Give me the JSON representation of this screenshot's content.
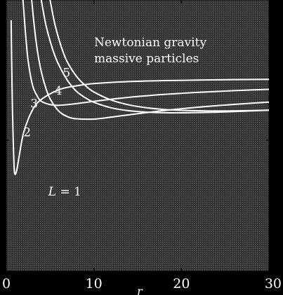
{
  "chart_data": {
    "type": "line",
    "title": "",
    "annotation_lines": [
      "Newtonian gravity",
      "massive particles"
    ],
    "xlabel": "r",
    "ylabel": "",
    "xlim": [
      0,
      30
    ],
    "ylim": [
      -0.5,
      0.2
    ],
    "xticks": [
      0,
      10,
      20,
      30
    ],
    "grid": false,
    "legend": "none",
    "background_color": "#3a3a3a",
    "line_color": "#ffffff",
    "text_color": "#ffffff",
    "series": [
      {
        "label": "L = 1",
        "L": 1,
        "label_x": 4.8,
        "label_y": -0.305,
        "x": [
          0.55,
          0.6,
          0.7,
          0.8,
          0.9,
          1.0,
          1.2,
          1.5,
          2,
          3,
          4,
          6,
          8,
          10,
          14,
          18,
          22,
          26,
          30
        ],
        "y": [
          0.1477,
          0.0556,
          -0.0816,
          -0.1719,
          -0.2346,
          -0.25,
          -0.2384,
          -0.1989,
          -0.1406,
          -0.0833,
          -0.0567,
          -0.0316,
          -0.0215,
          -0.0158,
          -0.0105,
          -0.0081,
          -0.0067,
          -0.0056,
          -0.0048
        ]
      },
      {
        "label": "2",
        "L": 2,
        "label_x": 1.95,
        "label_y": -0.152,
        "x": [
          1.9,
          2.0,
          2.2,
          2.5,
          3,
          3.5,
          4,
          5,
          6,
          8,
          10,
          14,
          18,
          22,
          26,
          30
        ],
        "y": [
          0.2001,
          0.1718,
          0.1115,
          0.0417,
          -0.0204,
          -0.0468,
          -0.0615,
          -0.07,
          -0.0719,
          -0.0675,
          -0.0616,
          -0.0512,
          -0.0438,
          -0.0384,
          -0.0341,
          -0.0306
        ]
      },
      {
        "label": "3",
        "L": 3,
        "label_x": 2.75,
        "label_y": -0.078,
        "x": [
          2.9,
          3.0,
          3.3,
          3.6,
          4,
          4.5,
          5,
          6,
          7,
          8,
          10,
          12,
          14,
          18,
          22,
          26,
          30
        ],
        "y": [
          0.2012,
          0.1755,
          0.1114,
          0.0617,
          0.0145,
          -0.0265,
          -0.055,
          -0.0871,
          -0.1012,
          -0.1066,
          -0.1074,
          -0.1024,
          -0.0964,
          -0.0854,
          -0.0766,
          -0.0696,
          -0.0636
        ]
      },
      {
        "label": "4",
        "L": 4,
        "label_x": 5.5,
        "label_y": -0.044,
        "x": [
          3.9,
          4.0,
          4.5,
          5,
          5.5,
          6,
          7,
          8,
          9,
          10,
          12,
          14,
          16,
          18,
          22,
          26,
          30
        ],
        "y": [
          0.212,
          0.1989,
          0.1377,
          0.0944,
          0.0592,
          0.0323,
          -0.0081,
          -0.0355,
          -0.052,
          -0.064,
          -0.0784,
          -0.0858,
          -0.0894,
          -0.091,
          -0.0906,
          -0.088,
          -0.0844
        ]
      },
      {
        "label": "5",
        "L": 5,
        "label_x": 6.45,
        "label_y": 0.002,
        "x": [
          4.9,
          5.0,
          5.5,
          6,
          6.5,
          7,
          8,
          9,
          10,
          12,
          14,
          16,
          18,
          20,
          24,
          27,
          30
        ],
        "y": [
          0.2135,
          0.2,
          0.1419,
          0.0993,
          0.065,
          0.0385,
          0.0033,
          -0.0203,
          -0.0375,
          -0.0584,
          -0.0708,
          -0.0782,
          -0.0826,
          -0.0848,
          -0.0865,
          -0.0858,
          -0.0844
        ]
      }
    ]
  }
}
